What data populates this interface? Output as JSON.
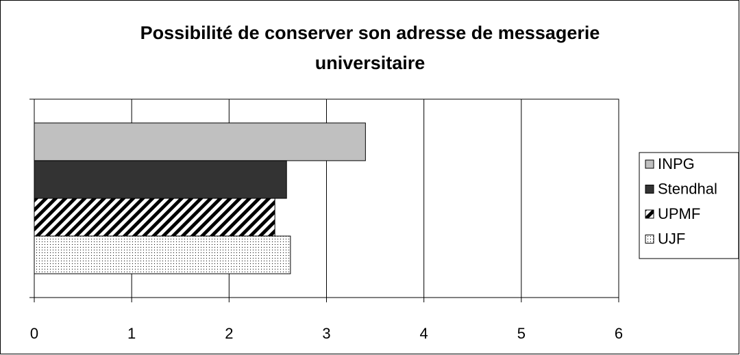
{
  "chart_data": {
    "type": "hbar",
    "title": "Possibilité de conserver son adresse de messagerie universitaire",
    "categories": [
      null
    ],
    "series": [
      {
        "name": "INPG",
        "color": "#c0c0c0",
        "fill": "solid",
        "values": [
          3.4
        ]
      },
      {
        "name": "Stendhal",
        "color": "#333333",
        "fill": "solid",
        "values": [
          2.59
        ]
      },
      {
        "name": "UPMF",
        "color": "#000000",
        "fill": "hatch",
        "values": [
          2.47
        ]
      },
      {
        "name": "UJF",
        "color": "#000000",
        "fill": "dots",
        "values": [
          2.63
        ]
      }
    ],
    "xlim": [
      0,
      6
    ],
    "xticks": [
      0,
      1,
      2,
      3,
      4,
      5,
      6
    ],
    "grid": true,
    "legend": "right"
  }
}
